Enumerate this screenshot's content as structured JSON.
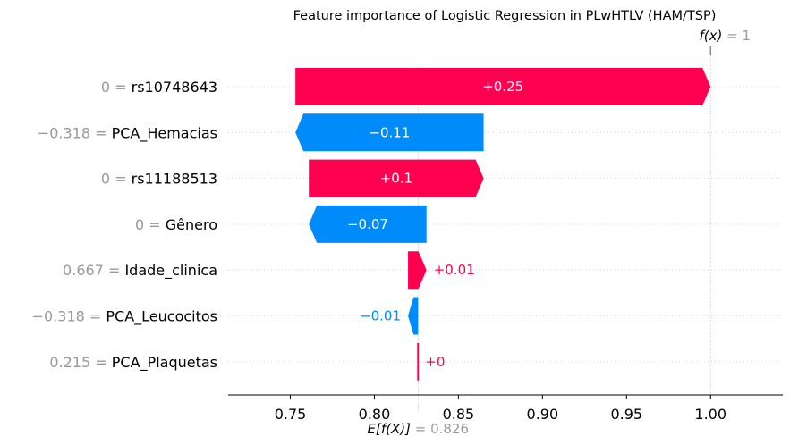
{
  "chart_data": {
    "type": "waterfall",
    "title": "Feature importance of Logistic Regression in PLwHTLV (HAM/TSP)",
    "base_value": 0.826,
    "base_value_label": "= 0.826",
    "base_value_prefix": "E[f(X)]",
    "output_value": 1,
    "output_value_label": "= 1",
    "output_value_prefix": "f(x)",
    "xlim": [
      0.713,
      1.043
    ],
    "xticks": [
      0.75,
      0.8,
      0.85,
      0.9,
      0.95,
      1.0
    ],
    "xtick_labels": [
      "0.75",
      "0.80",
      "0.85",
      "0.90",
      "0.95",
      "1.00"
    ],
    "features": [
      {
        "value": "0",
        "name": "rs10748643",
        "start": 0.753,
        "end": 1.0,
        "label": "+0.25",
        "sign": "pos",
        "label_inside": true
      },
      {
        "value": "−0.318",
        "name": "PCA_Hemacias",
        "start": 0.865,
        "end": 0.753,
        "label": "−0.11",
        "sign": "neg",
        "label_inside": true
      },
      {
        "value": "0",
        "name": "rs11188513",
        "start": 0.761,
        "end": 0.865,
        "label": "+0.1",
        "sign": "pos",
        "label_inside": true
      },
      {
        "value": "0",
        "name": "Gênero",
        "start": 0.831,
        "end": 0.761,
        "label": "−0.07",
        "sign": "neg",
        "label_inside": true
      },
      {
        "value": "0.667",
        "name": "Idade_clinica",
        "start": 0.82,
        "end": 0.831,
        "label": "+0.01",
        "sign": "pos",
        "label_inside": false
      },
      {
        "value": "−0.318",
        "name": "PCA_Leucocitos",
        "start": 0.826,
        "end": 0.82,
        "label": "−0.01",
        "sign": "neg",
        "label_inside": false
      },
      {
        "value": "0.215",
        "name": "PCA_Plaquetas",
        "start": 0.826,
        "end": 0.826,
        "label": "+0",
        "sign": "pos",
        "label_inside": false
      }
    ],
    "colors": {
      "positive": "#ff0051",
      "negative": "#008bfb",
      "value_text": "#999999"
    }
  }
}
